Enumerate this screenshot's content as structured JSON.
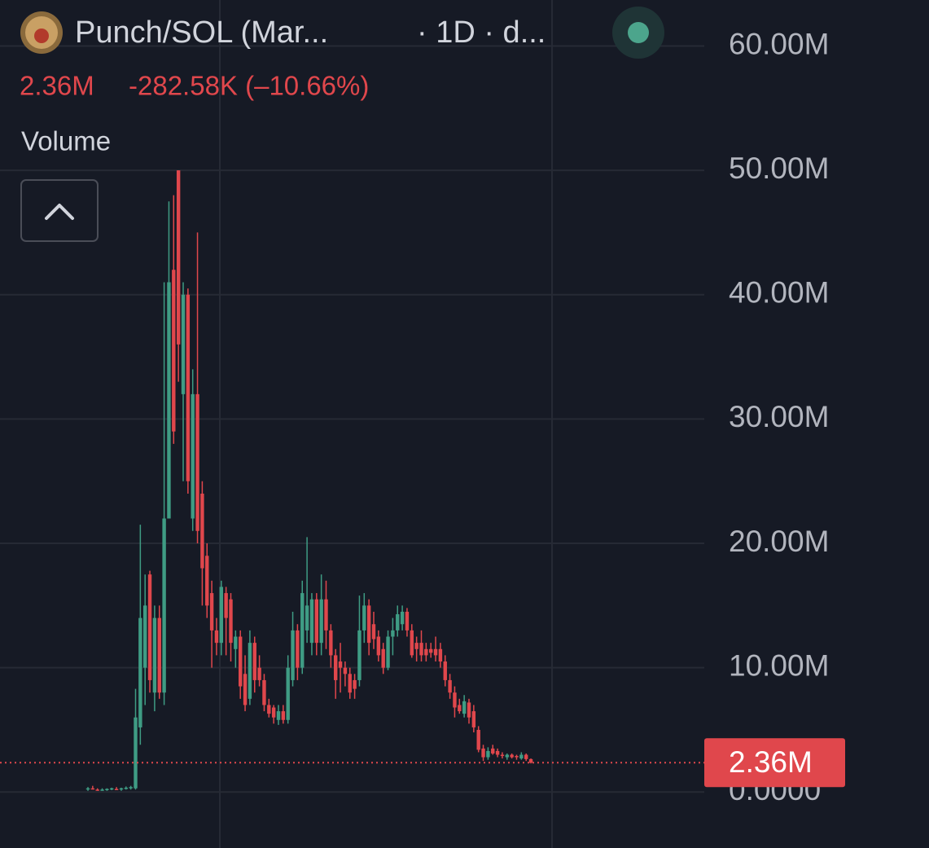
{
  "chart_data": {
    "type": "candlestick",
    "title": "Punch/SOL (Mar...",
    "interval": "· 1D · d...",
    "last_price": 2.36,
    "last_price_label": "2.36M",
    "change_label": "-282.58K (–10.66%)",
    "indicator": "Volume",
    "up_color": "#3f9c84",
    "down_color": "#e0474c",
    "ylim": [
      -4.5,
      63.7
    ],
    "yticks": [
      {
        "value": 0,
        "label": "0.0000"
      },
      {
        "value": 10,
        "label": "10.00M"
      },
      {
        "value": 20,
        "label": "20.00M"
      },
      {
        "value": 30,
        "label": "30.00M"
      },
      {
        "value": 40,
        "label": "40.00M"
      },
      {
        "value": 50,
        "label": "50.00M"
      },
      {
        "value": 60,
        "label": "60.00M"
      }
    ],
    "grid": true,
    "open": [
      0.2,
      0.3,
      0.2,
      0.15,
      0.2,
      0.2,
      0.25,
      0.2,
      0.3,
      0.3,
      0.3,
      5.2,
      10,
      17.5,
      8,
      14,
      8,
      22,
      42,
      50,
      32,
      40,
      22,
      32,
      24,
      19,
      16,
      13,
      12,
      16,
      15.5,
      11.5,
      12.5,
      9.5,
      7.5,
      12,
      10,
      9,
      7,
      6.8,
      5.8,
      6.5,
      5.8,
      9,
      13,
      10,
      13,
      12,
      15.5,
      12,
      15.5,
      13,
      11,
      10.5,
      10,
      9.5,
      9,
      9,
      13,
      15,
      13.5,
      12.5,
      11.5,
      10,
      12.5,
      13,
      13.5,
      14.5,
      13,
      12,
      12,
      11.5,
      11.5,
      11.5,
      11.5,
      10.5,
      9,
      8,
      7,
      6.3,
      7.2,
      6.5,
      5,
      3.5,
      2.8,
      3.5,
      3.3,
      3,
      2.8,
      3,
      2.9,
      2.7,
      3,
      2.65
    ],
    "high": [
      0.4,
      0.5,
      0.3,
      0.3,
      0.3,
      0.35,
      0.4,
      0.35,
      0.45,
      0.5,
      8.3,
      21.5,
      17.5,
      17.8,
      15,
      15,
      41,
      47.5,
      48,
      50,
      41,
      40.5,
      34,
      45,
      25,
      20,
      17,
      14,
      17,
      16.5,
      16,
      13,
      13,
      11,
      13,
      12.5,
      11,
      9.5,
      7.5,
      7,
      7,
      7,
      11,
      14.5,
      13.5,
      17,
      20.5,
      16,
      16,
      17.5,
      17,
      13.5,
      11.5,
      12,
      10.5,
      10,
      9.5,
      15.8,
      16,
      15.5,
      14.5,
      13,
      12,
      13,
      14,
      15,
      15,
      14.8,
      13.5,
      12.5,
      13,
      12,
      12,
      12.5,
      12,
      11,
      9.5,
      8.5,
      7.5,
      7.8,
      7.5,
      7,
      5.3,
      3.8,
      3.6,
      3.8,
      3.5,
      3.2,
      3.1,
      3.1,
      3,
      3.2,
      3.1,
      2.7
    ],
    "low": [
      0.1,
      0.2,
      0.1,
      0.1,
      0.1,
      0.15,
      0.15,
      0.1,
      0.2,
      0.2,
      0.2,
      3.8,
      7,
      8,
      6.5,
      7.5,
      7,
      22,
      28,
      33,
      25,
      24,
      21,
      20,
      15,
      14,
      10,
      11,
      11,
      11,
      10.5,
      10,
      7.5,
      6.5,
      7,
      8,
      8.5,
      6.5,
      6,
      5.5,
      5.4,
      5.5,
      5.5,
      8.5,
      9,
      9.5,
      12,
      11,
      11,
      11,
      11.5,
      10,
      7.5,
      8,
      8.5,
      7.5,
      7.5,
      8.5,
      12,
      11,
      11.5,
      10.5,
      9.5,
      9.8,
      11,
      12.5,
      13,
      12.5,
      10.8,
      10.5,
      10.5,
      10.5,
      10.8,
      10.5,
      10,
      8.5,
      7.5,
      6,
      6.3,
      6,
      5.5,
      4.8,
      3.2,
      2.5,
      2.6,
      3,
      2.8,
      2.7,
      2.6,
      2.7,
      2.6,
      2.6,
      2.5,
      2.3
    ],
    "close": [
      0.3,
      0.25,
      0.15,
      0.2,
      0.25,
      0.3,
      0.2,
      0.3,
      0.35,
      0.4,
      6,
      14,
      15,
      9,
      14,
      8,
      22,
      41,
      29,
      36,
      40,
      25,
      32,
      21,
      18,
      15,
      13,
      12,
      16.5,
      14,
      12,
      12.5,
      8.5,
      7,
      12,
      9,
      9,
      7,
      6.3,
      6,
      6.5,
      5.8,
      10,
      13,
      10,
      16,
      15,
      15.5,
      12,
      15.5,
      13,
      11,
      9,
      10,
      9.5,
      8,
      8.3,
      13,
      15,
      12,
      12.3,
      11,
      10,
      12.5,
      13,
      14.3,
      14.5,
      13,
      11,
      11.5,
      11,
      11,
      11.2,
      11,
      10.5,
      9,
      8,
      6.8,
      6.5,
      7.3,
      6,
      5.2,
      3.4,
      2.8,
      3.3,
      3.1,
      3,
      2.9,
      3,
      2.8,
      2.8,
      3,
      2.65,
      2.36
    ]
  }
}
